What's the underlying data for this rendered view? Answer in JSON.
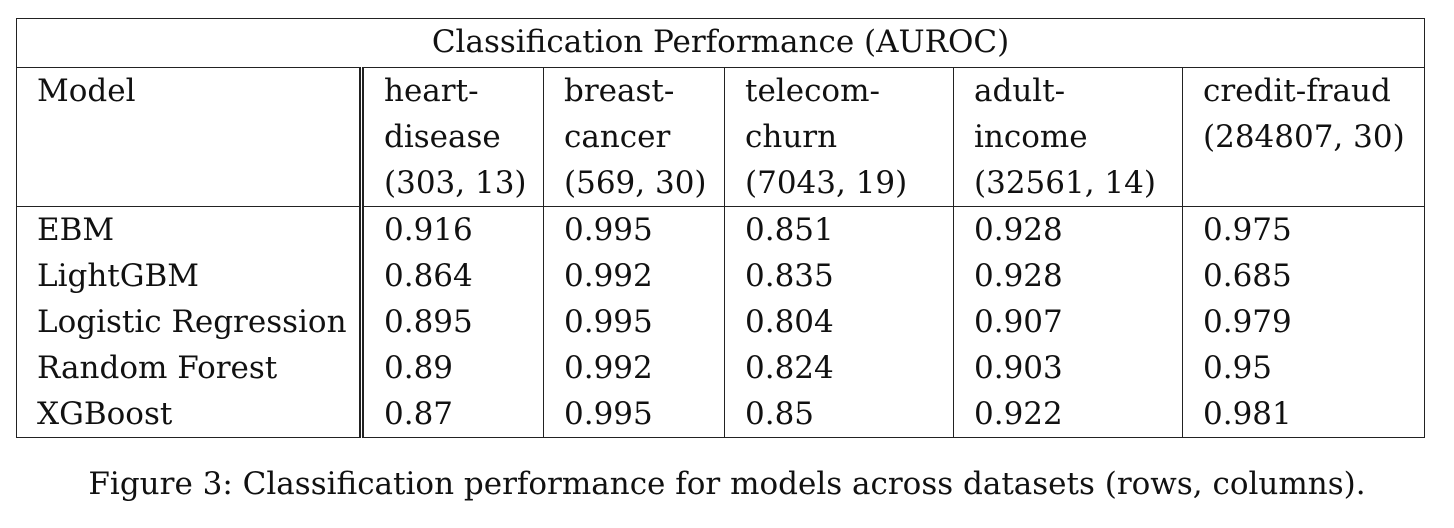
{
  "table": {
    "title": "Classification Performance (AUROC)",
    "model_header": "Model",
    "columns": [
      {
        "lines": [
          "heart-",
          "disease",
          "(303, 13)"
        ]
      },
      {
        "lines": [
          "breast-",
          "cancer",
          "(569, 30)"
        ]
      },
      {
        "lines": [
          "telecom-",
          "churn",
          "(7043, 19)"
        ]
      },
      {
        "lines": [
          "adult-",
          "income",
          "(32561, 14)"
        ]
      },
      {
        "lines": [
          "credit-fraud",
          "(284807, 30)"
        ]
      }
    ],
    "rows": [
      {
        "model": "EBM",
        "values": [
          "0.916",
          "0.995",
          "0.851",
          "0.928",
          "0.975"
        ],
        "bold": [
          true,
          true,
          true,
          true,
          false
        ]
      },
      {
        "model": "LightGBM",
        "values": [
          "0.864",
          "0.992",
          "0.835",
          "0.928",
          "0.685"
        ],
        "bold": [
          false,
          false,
          false,
          true,
          false
        ]
      },
      {
        "model": "Logistic Regression",
        "values": [
          "0.895",
          "0.995",
          "0.804",
          "0.907",
          "0.979"
        ],
        "bold": [
          false,
          true,
          false,
          false,
          false
        ]
      },
      {
        "model": "Random Forest",
        "values": [
          "0.89",
          "0.992",
          "0.824",
          "0.903",
          "0.95"
        ],
        "bold": [
          false,
          false,
          false,
          false,
          false
        ]
      },
      {
        "model": "XGBoost",
        "values": [
          "0.87",
          "0.995",
          "0.85",
          "0.922",
          "0.981"
        ],
        "bold": [
          false,
          true,
          false,
          false,
          true
        ]
      }
    ]
  },
  "caption": "Figure 3: Classification performance for models across datasets (rows, columns)."
}
